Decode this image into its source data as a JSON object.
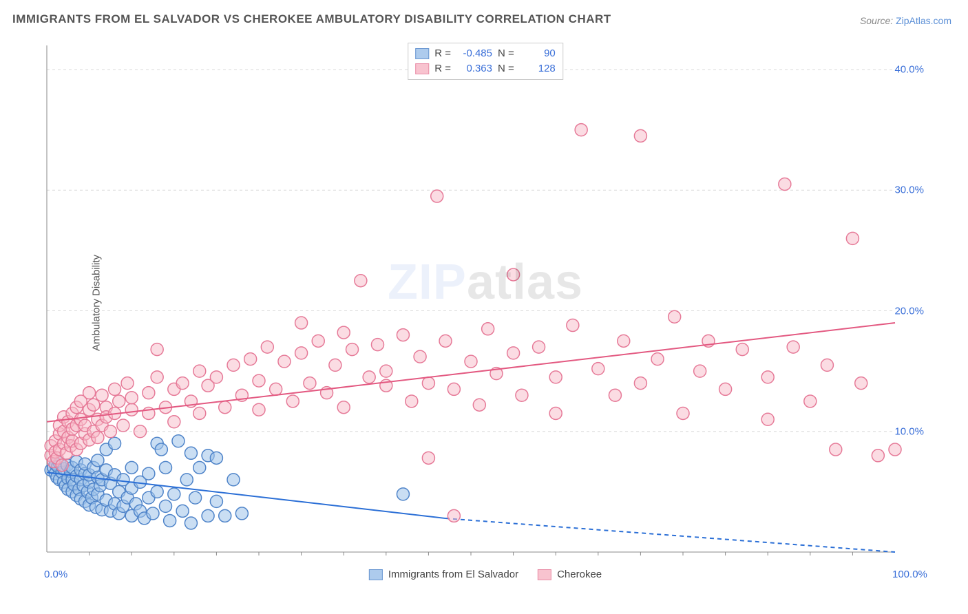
{
  "title": "IMMIGRANTS FROM EL SALVADOR VS CHEROKEE AMBULATORY DISABILITY CORRELATION CHART",
  "source_label": "Source:",
  "source_value": "ZipAtlas.com",
  "ylabel": "Ambulatory Disability",
  "watermark_left": "ZIP",
  "watermark_right": "atlas",
  "chart": {
    "type": "scatter",
    "x_domain": [
      0,
      100
    ],
    "y_domain": [
      0,
      42
    ],
    "y_ticks": [
      10,
      20,
      30,
      40
    ],
    "y_tick_labels": [
      "10.0%",
      "20.0%",
      "30.0%",
      "40.0%"
    ],
    "x_ticks": [
      0,
      100
    ],
    "x_tick_labels": [
      "0.0%",
      "100.0%"
    ],
    "x_minor_tick_step": 5,
    "grid_color": "#d9d9d9",
    "axis_color": "#888888",
    "background_color": "#ffffff",
    "marker_radius": 9,
    "marker_stroke_width": 1.5,
    "trend_line_width": 2,
    "series": [
      {
        "key": "salvador",
        "label": "Immigrants from El Salvador",
        "fill": "#9fc3ea",
        "fill_opacity": 0.55,
        "stroke": "#4f84c9",
        "trend_color": "#2b6fd6",
        "trend_solid_end_x": 47,
        "trend": {
          "y_at_x0": 6.6,
          "y_at_x100": -1.5
        },
        "legend_stats": {
          "R_label": "R =",
          "R": "-0.485",
          "N_label": "N =",
          "N": "90"
        },
        "points": [
          [
            0.5,
            6.8
          ],
          [
            0.8,
            7.0
          ],
          [
            1.0,
            6.5
          ],
          [
            1.0,
            7.3
          ],
          [
            1.2,
            6.2
          ],
          [
            1.3,
            7.1
          ],
          [
            1.5,
            6.0
          ],
          [
            1.5,
            7.4
          ],
          [
            1.8,
            6.6
          ],
          [
            2.0,
            5.8
          ],
          [
            2.0,
            6.9
          ],
          [
            2.2,
            5.5
          ],
          [
            2.4,
            7.2
          ],
          [
            2.5,
            6.1
          ],
          [
            2.5,
            5.2
          ],
          [
            2.8,
            6.7
          ],
          [
            3.0,
            5.0
          ],
          [
            3.0,
            7.0
          ],
          [
            3.0,
            6.0
          ],
          [
            3.2,
            5.6
          ],
          [
            3.5,
            4.7
          ],
          [
            3.5,
            6.3
          ],
          [
            3.5,
            7.5
          ],
          [
            3.8,
            5.2
          ],
          [
            4.0,
            4.4
          ],
          [
            4.0,
            6.0
          ],
          [
            4.0,
            6.8
          ],
          [
            4.3,
            5.5
          ],
          [
            4.5,
            4.2
          ],
          [
            4.5,
            6.5
          ],
          [
            4.5,
            7.3
          ],
          [
            4.8,
            5.0
          ],
          [
            5.0,
            3.9
          ],
          [
            5.0,
            5.8
          ],
          [
            5.0,
            6.4
          ],
          [
            5.3,
            4.5
          ],
          [
            5.5,
            7.0
          ],
          [
            5.5,
            5.2
          ],
          [
            5.8,
            3.7
          ],
          [
            6.0,
            6.2
          ],
          [
            6.0,
            4.8
          ],
          [
            6.0,
            7.6
          ],
          [
            6.3,
            5.5
          ],
          [
            6.5,
            3.5
          ],
          [
            6.5,
            6.0
          ],
          [
            7.0,
            4.3
          ],
          [
            7.0,
            6.8
          ],
          [
            7.0,
            8.5
          ],
          [
            7.5,
            3.4
          ],
          [
            7.5,
            5.7
          ],
          [
            8.0,
            4.0
          ],
          [
            8.0,
            6.4
          ],
          [
            8.0,
            9.0
          ],
          [
            8.5,
            3.2
          ],
          [
            8.5,
            5.0
          ],
          [
            9.0,
            3.8
          ],
          [
            9.0,
            6.0
          ],
          [
            9.5,
            4.5
          ],
          [
            10.0,
            3.0
          ],
          [
            10.0,
            5.3
          ],
          [
            10.0,
            7.0
          ],
          [
            10.5,
            4.0
          ],
          [
            11.0,
            3.4
          ],
          [
            11.0,
            5.8
          ],
          [
            11.5,
            2.8
          ],
          [
            12.0,
            4.5
          ],
          [
            12.0,
            6.5
          ],
          [
            12.5,
            3.2
          ],
          [
            13.0,
            5.0
          ],
          [
            13.0,
            9.0
          ],
          [
            13.5,
            8.5
          ],
          [
            14.0,
            3.8
          ],
          [
            14.0,
            7.0
          ],
          [
            14.5,
            2.6
          ],
          [
            15.0,
            4.8
          ],
          [
            15.5,
            9.2
          ],
          [
            16.0,
            3.4
          ],
          [
            16.5,
            6.0
          ],
          [
            17.0,
            8.2
          ],
          [
            17.0,
            2.4
          ],
          [
            17.5,
            4.5
          ],
          [
            18.0,
            7.0
          ],
          [
            19.0,
            3.0
          ],
          [
            19.0,
            8.0
          ],
          [
            20.0,
            4.2
          ],
          [
            20.0,
            7.8
          ],
          [
            21.0,
            3.0
          ],
          [
            22.0,
            6.0
          ],
          [
            23.0,
            3.2
          ],
          [
            42.0,
            4.8
          ]
        ]
      },
      {
        "key": "cherokee",
        "label": "Cherokee",
        "fill": "#f7b9c7",
        "fill_opacity": 0.5,
        "stroke": "#e67a98",
        "trend_color": "#e35981",
        "trend_solid_end_x": 100,
        "trend": {
          "y_at_x0": 10.8,
          "y_at_x100": 19.0
        },
        "legend_stats": {
          "R_label": "R =",
          "R": "0.363",
          "N_label": "N =",
          "N": "128"
        },
        "points": [
          [
            0.5,
            8.0
          ],
          [
            0.5,
            8.8
          ],
          [
            0.8,
            7.5
          ],
          [
            1.0,
            9.2
          ],
          [
            1.0,
            8.3
          ],
          [
            1.2,
            7.8
          ],
          [
            1.5,
            9.8
          ],
          [
            1.5,
            8.5
          ],
          [
            1.5,
            10.5
          ],
          [
            1.8,
            7.2
          ],
          [
            2.0,
            9.0
          ],
          [
            2.0,
            10.0
          ],
          [
            2.0,
            11.2
          ],
          [
            2.3,
            8.2
          ],
          [
            2.5,
            9.5
          ],
          [
            2.5,
            10.8
          ],
          [
            2.8,
            8.8
          ],
          [
            3.0,
            11.5
          ],
          [
            3.0,
            9.2
          ],
          [
            3.0,
            10.2
          ],
          [
            3.5,
            12.0
          ],
          [
            3.5,
            8.5
          ],
          [
            3.5,
            10.5
          ],
          [
            4.0,
            9.0
          ],
          [
            4.0,
            11.0
          ],
          [
            4.0,
            12.5
          ],
          [
            4.5,
            9.8
          ],
          [
            4.5,
            10.5
          ],
          [
            5.0,
            11.8
          ],
          [
            5.0,
            9.3
          ],
          [
            5.0,
            13.2
          ],
          [
            5.5,
            10.0
          ],
          [
            5.5,
            12.2
          ],
          [
            6.0,
            11.0
          ],
          [
            6.0,
            9.5
          ],
          [
            6.5,
            13.0
          ],
          [
            6.5,
            10.5
          ],
          [
            7.0,
            12.0
          ],
          [
            7.0,
            11.2
          ],
          [
            7.5,
            10.0
          ],
          [
            8.0,
            13.5
          ],
          [
            8.0,
            11.5
          ],
          [
            8.5,
            12.5
          ],
          [
            9.0,
            10.5
          ],
          [
            9.5,
            14.0
          ],
          [
            10.0,
            11.8
          ],
          [
            10.0,
            12.8
          ],
          [
            11.0,
            10.0
          ],
          [
            12.0,
            13.2
          ],
          [
            12.0,
            11.5
          ],
          [
            13.0,
            14.5
          ],
          [
            13.0,
            16.8
          ],
          [
            14.0,
            12.0
          ],
          [
            15.0,
            13.5
          ],
          [
            15.0,
            10.8
          ],
          [
            16.0,
            14.0
          ],
          [
            17.0,
            12.5
          ],
          [
            18.0,
            15.0
          ],
          [
            18.0,
            11.5
          ],
          [
            19.0,
            13.8
          ],
          [
            20.0,
            14.5
          ],
          [
            21.0,
            12.0
          ],
          [
            22.0,
            15.5
          ],
          [
            23.0,
            13.0
          ],
          [
            24.0,
            16.0
          ],
          [
            25.0,
            14.2
          ],
          [
            25.0,
            11.8
          ],
          [
            26.0,
            17.0
          ],
          [
            27.0,
            13.5
          ],
          [
            28.0,
            15.8
          ],
          [
            29.0,
            12.5
          ],
          [
            30.0,
            16.5
          ],
          [
            30.0,
            19.0
          ],
          [
            31.0,
            14.0
          ],
          [
            32.0,
            17.5
          ],
          [
            33.0,
            13.2
          ],
          [
            34.0,
            15.5
          ],
          [
            35.0,
            12.0
          ],
          [
            35.0,
            18.2
          ],
          [
            36.0,
            16.8
          ],
          [
            37.0,
            22.5
          ],
          [
            38.0,
            14.5
          ],
          [
            39.0,
            17.2
          ],
          [
            40.0,
            13.8
          ],
          [
            40.0,
            15.0
          ],
          [
            42.0,
            18.0
          ],
          [
            43.0,
            12.5
          ],
          [
            44.0,
            16.2
          ],
          [
            45.0,
            14.0
          ],
          [
            45.0,
            7.8
          ],
          [
            46.0,
            29.5
          ],
          [
            47.0,
            17.5
          ],
          [
            48.0,
            13.5
          ],
          [
            48.0,
            3.0
          ],
          [
            50.0,
            15.8
          ],
          [
            51.0,
            12.2
          ],
          [
            52.0,
            18.5
          ],
          [
            53.0,
            14.8
          ],
          [
            55.0,
            16.5
          ],
          [
            55.0,
            23.0
          ],
          [
            56.0,
            13.0
          ],
          [
            58.0,
            17.0
          ],
          [
            60.0,
            14.5
          ],
          [
            60.0,
            11.5
          ],
          [
            62.0,
            18.8
          ],
          [
            63.0,
            35.0
          ],
          [
            65.0,
            15.2
          ],
          [
            67.0,
            13.0
          ],
          [
            68.0,
            17.5
          ],
          [
            70.0,
            34.5
          ],
          [
            70.0,
            14.0
          ],
          [
            72.0,
            16.0
          ],
          [
            74.0,
            19.5
          ],
          [
            75.0,
            11.5
          ],
          [
            77.0,
            15.0
          ],
          [
            78.0,
            17.5
          ],
          [
            80.0,
            13.5
          ],
          [
            82.0,
            16.8
          ],
          [
            85.0,
            14.5
          ],
          [
            85.0,
            11.0
          ],
          [
            87.0,
            30.5
          ],
          [
            88.0,
            17.0
          ],
          [
            90.0,
            12.5
          ],
          [
            92.0,
            15.5
          ],
          [
            93.0,
            8.5
          ],
          [
            95.0,
            26.0
          ],
          [
            96.0,
            14.0
          ],
          [
            98.0,
            8.0
          ],
          [
            100.0,
            8.5
          ]
        ]
      }
    ]
  },
  "bottom_legend": [
    {
      "key": "salvador",
      "label": "Immigrants from El Salvador"
    },
    {
      "key": "cherokee",
      "label": "Cherokee"
    }
  ]
}
